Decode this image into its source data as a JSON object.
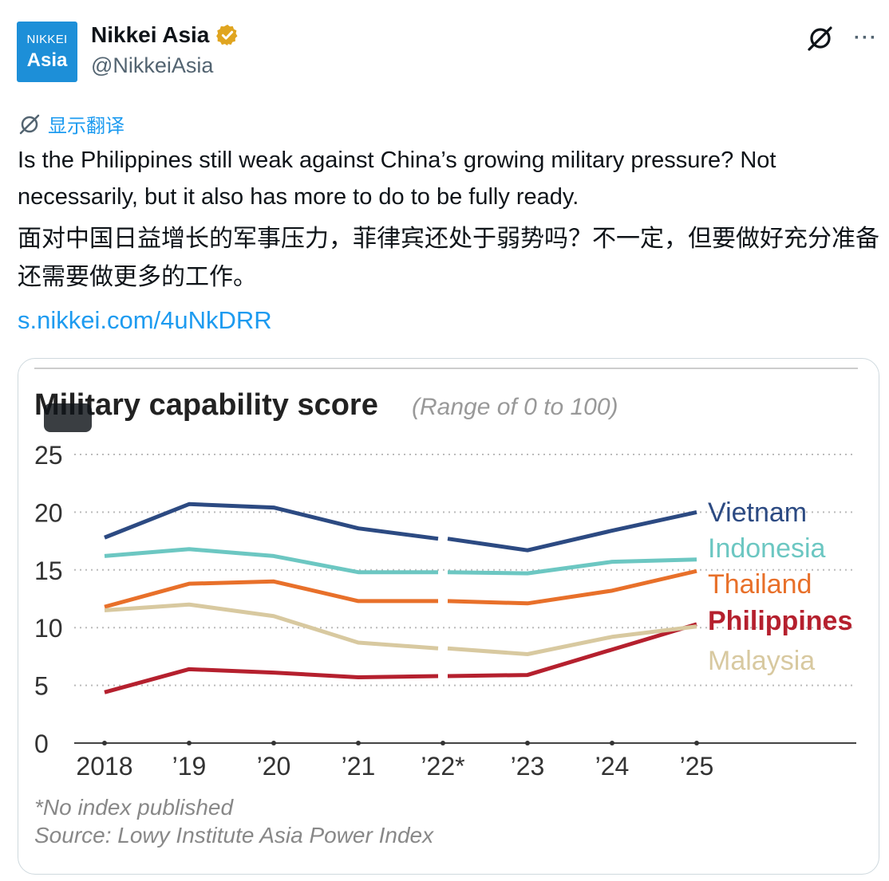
{
  "account": {
    "avatar_line1": "NIKKEI",
    "avatar_line2": "Asia",
    "name": "Nikkei Asia",
    "handle": "@NikkeiAsia",
    "verified": true,
    "verified_badge_color": "#e0a520"
  },
  "icons": {
    "grok": "grok-icon",
    "more": "more-icon",
    "translate": "translate-icon"
  },
  "translate_label": "显示翻译",
  "tweet": {
    "text_en": "Is the Philippines still weak against China’s growing military pressure? Not necessarily, but it also has more to do to be fully ready.",
    "text_zh": "面对中国日益增长的军事压力，菲律宾还处于弱势吗？不一定，但要做好充分准备还需要做更多的工作。",
    "link": "s.nikkei.com/4uNkDRR"
  },
  "chart_data": {
    "type": "line",
    "title": "Military capability score",
    "subtitle": "(Range of 0 to 100)",
    "x": [
      "2018",
      "’19",
      "’20",
      "’21",
      "’22*",
      "’23",
      "’24",
      "’25"
    ],
    "ylim": [
      0,
      25
    ],
    "yticks": [
      0,
      5,
      10,
      15,
      20,
      25
    ],
    "grid": true,
    "gap_at": "’22*",
    "series": [
      {
        "name": "Vietnam",
        "color": "#2c4a82",
        "values": [
          17.8,
          20.7,
          20.4,
          18.6,
          17.7,
          16.7,
          18.4,
          20.0
        ]
      },
      {
        "name": "Indonesia",
        "color": "#6cc7c2",
        "values": [
          16.2,
          16.8,
          16.2,
          14.8,
          14.8,
          14.7,
          15.7,
          15.9
        ]
      },
      {
        "name": "Thailand",
        "color": "#e8702a",
        "values": [
          11.8,
          13.8,
          14.0,
          12.3,
          12.3,
          12.1,
          13.2,
          14.9
        ]
      },
      {
        "name": "Philippines",
        "color": "#b5202e",
        "values": [
          4.4,
          6.4,
          6.1,
          5.7,
          5.8,
          5.9,
          8.1,
          10.3
        ]
      },
      {
        "name": "Malaysia",
        "color": "#d8c9a0",
        "values": [
          11.5,
          12.0,
          11.0,
          8.7,
          8.2,
          7.7,
          9.2,
          10.1
        ]
      }
    ],
    "footnote": "*No index published",
    "source": "Source: Lowy Institute Asia Power Index"
  }
}
